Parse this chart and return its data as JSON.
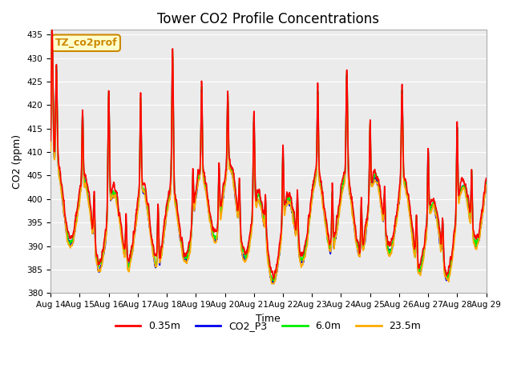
{
  "title": "Tower CO2 Profile Concentrations",
  "xlabel": "Time",
  "ylabel": "CO2 (ppm)",
  "ylim": [
    380,
    436
  ],
  "series_labels": [
    "0.35m",
    "CO2_P3",
    "6.0m",
    "23.5m"
  ],
  "series_colors": [
    "#ff0000",
    "#0000ee",
    "#00ee00",
    "#ffaa00"
  ],
  "annotation_text": "TZ_co2prof",
  "annotation_color": "#cc8800",
  "annotation_bg": "#ffffcc",
  "xtick_labels": [
    "Aug 14",
    "Aug 15",
    "Aug 16",
    "Aug 17",
    "Aug 18",
    "Aug 19",
    "Aug 20",
    "Aug 21",
    "Aug 22",
    "Aug 23",
    "Aug 24",
    "Aug 25",
    "Aug 26",
    "Aug 27",
    "Aug 28",
    "Aug 29"
  ],
  "ytick_values": [
    380,
    385,
    390,
    395,
    400,
    405,
    410,
    415,
    420,
    425,
    430,
    435
  ],
  "bg_color": "#ebebeb",
  "fig_bg": "#ffffff",
  "grid_color": "#ffffff",
  "linewidth": 1.2,
  "title_fontsize": 12,
  "axis_label_fontsize": 9,
  "tick_fontsize": 7.5,
  "legend_fontsize": 9,
  "n_points": 2160
}
